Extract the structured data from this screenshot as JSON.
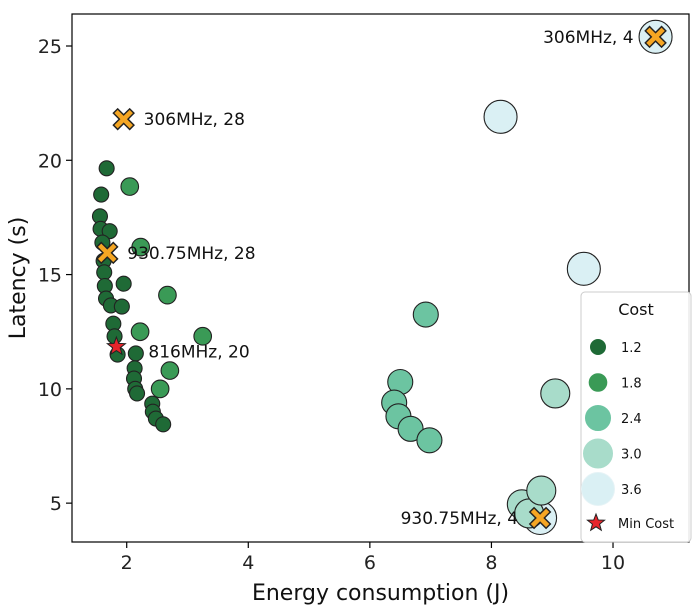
{
  "chart_data": {
    "type": "scatter",
    "title": "",
    "xlabel": "Energy consumption (J)",
    "ylabel": "Latency (s)",
    "xlim": [
      1.1,
      11.25
    ],
    "ylim": [
      3.3,
      26.4
    ],
    "xticks": [
      2,
      4,
      6,
      8,
      10
    ],
    "yticks": [
      5,
      10,
      15,
      20,
      25
    ],
    "colors": {
      "1.2": "#1f6a36",
      "1.8": "#3a9a56",
      "2.4": "#6cc4a1",
      "3.0": "#a8dcca",
      "3.6": "#daf0f4",
      "marker": "#f5a623",
      "star": "#e8242b"
    },
    "series": [
      {
        "name": "cost-1.2",
        "cost": 1.2,
        "points": [
          [
            1.67,
            19.65
          ],
          [
            1.58,
            18.5
          ],
          [
            1.56,
            17.55
          ],
          [
            1.57,
            17.0
          ],
          [
            1.72,
            16.9
          ],
          [
            1.6,
            16.4
          ],
          [
            1.62,
            15.6
          ],
          [
            1.63,
            15.1
          ],
          [
            1.64,
            14.5
          ],
          [
            1.66,
            13.95
          ],
          [
            1.74,
            13.65
          ],
          [
            1.78,
            12.85
          ],
          [
            1.8,
            12.3
          ],
          [
            1.85,
            11.5
          ],
          [
            2.15,
            11.55
          ],
          [
            2.13,
            10.9
          ],
          [
            2.12,
            10.45
          ],
          [
            2.14,
            10.0
          ],
          [
            2.17,
            9.8
          ],
          [
            2.42,
            9.35
          ],
          [
            2.43,
            9.0
          ],
          [
            2.48,
            8.7
          ],
          [
            2.6,
            8.45
          ],
          [
            1.92,
            13.6
          ],
          [
            1.95,
            14.6
          ]
        ]
      },
      {
        "name": "cost-1.8",
        "cost": 1.8,
        "points": [
          [
            2.05,
            18.85
          ],
          [
            2.23,
            16.2
          ],
          [
            2.67,
            14.1
          ],
          [
            2.22,
            12.5
          ],
          [
            3.25,
            12.3
          ],
          [
            2.71,
            10.8
          ],
          [
            2.55,
            10.0
          ]
        ]
      },
      {
        "name": "cost-2.4",
        "cost": 2.4,
        "points": [
          [
            6.5,
            10.3
          ],
          [
            6.4,
            9.4
          ],
          [
            6.47,
            8.8
          ],
          [
            6.67,
            8.25
          ],
          [
            6.98,
            7.75
          ],
          [
            6.92,
            13.25
          ]
        ]
      },
      {
        "name": "cost-3.0",
        "cost": 3.0,
        "points": [
          [
            8.5,
            4.95
          ],
          [
            8.62,
            4.55
          ],
          [
            8.82,
            5.55
          ],
          [
            9.05,
            9.8
          ]
        ]
      },
      {
        "name": "cost-3.6",
        "cost": 3.6,
        "points": [
          [
            8.15,
            21.9
          ],
          [
            9.52,
            15.25
          ],
          [
            10.7,
            25.4
          ],
          [
            8.8,
            4.35
          ]
        ]
      }
    ],
    "highlights": [
      {
        "x": 1.95,
        "y": 21.8,
        "label": "306MHz, 28",
        "label_side": "right"
      },
      {
        "x": 1.68,
        "y": 15.95,
        "label": "930.75MHz, 28",
        "label_side": "right"
      },
      {
        "x": 10.7,
        "y": 25.4,
        "label": "306MHz, 4",
        "label_side": "left"
      },
      {
        "x": 8.8,
        "y": 4.35,
        "label": "930.75MHz, 4",
        "label_side": "left"
      }
    ],
    "min_cost": {
      "x": 1.83,
      "y": 11.85,
      "label": "816MHz, 20"
    },
    "legend": {
      "title": "Cost",
      "position": "lower right",
      "entries": [
        "1.2",
        "1.8",
        "2.4",
        "3.0",
        "3.6"
      ],
      "min_cost_label": "Min Cost"
    }
  }
}
